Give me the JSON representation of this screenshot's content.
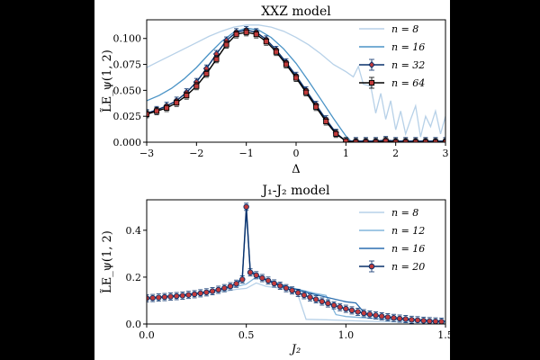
{
  "chart_data": [
    {
      "type": "line",
      "title": "XXZ model",
      "xlabel": "Δ",
      "ylabel": "L̃E_ψ(1, 2)",
      "xlim": [
        -3,
        3
      ],
      "ylim": [
        0,
        0.118
      ],
      "xticks": [
        "−3",
        "−2",
        "−1",
        "0",
        "1",
        "2",
        "3"
      ],
      "yticks": [
        "0.000",
        "0.025",
        "0.050",
        "0.075",
        "0.100"
      ],
      "legend_position": "top-right",
      "series": [
        {
          "name": "n = 8",
          "color": "#b7d1e8",
          "style": "line",
          "x": [
            -3,
            -2.75,
            -2.5,
            -2.25,
            -2,
            -1.75,
            -1.5,
            -1.25,
            -1,
            -0.75,
            -0.5,
            -0.25,
            0,
            0.25,
            0.5,
            0.75,
            1,
            1.15,
            1.25,
            1.35,
            1.5,
            1.6,
            1.7,
            1.8,
            1.9,
            2.0,
            2.1,
            2.2,
            2.3,
            2.4,
            2.5,
            2.6,
            2.7,
            2.8,
            2.9,
            3.0
          ],
          "y": [
            0.072,
            0.078,
            0.084,
            0.09,
            0.096,
            0.102,
            0.107,
            0.111,
            0.113,
            0.113,
            0.111,
            0.107,
            0.101,
            0.094,
            0.085,
            0.075,
            0.068,
            0.063,
            0.073,
            0.056,
            0.054,
            0.028,
            0.047,
            0.022,
            0.04,
            0.012,
            0.03,
            0.008,
            0.022,
            0.035,
            0.005,
            0.025,
            0.015,
            0.03,
            0.008,
            0.025
          ]
        },
        {
          "name": "n = 16",
          "color": "#4a93c6",
          "style": "line",
          "x": [
            -3,
            -2.75,
            -2.5,
            -2.25,
            -2,
            -1.75,
            -1.5,
            -1.25,
            -1,
            -0.75,
            -0.5,
            -0.25,
            0,
            0.25,
            0.5,
            0.75,
            1,
            1.1,
            1.5,
            2,
            2.5,
            3
          ],
          "y": [
            0.04,
            0.045,
            0.052,
            0.061,
            0.072,
            0.085,
            0.097,
            0.106,
            0.11,
            0.108,
            0.101,
            0.09,
            0.076,
            0.059,
            0.041,
            0.023,
            0.006,
            0.001,
            0.001,
            0.001,
            0.001,
            0.001
          ]
        },
        {
          "name": "n = 32",
          "color": "#08306b",
          "marker": "diamond",
          "marker_fill": "#c23b3b",
          "x": [
            -3,
            -2.8,
            -2.6,
            -2.4,
            -2.2,
            -2.0,
            -1.8,
            -1.6,
            -1.4,
            -1.2,
            -1.0,
            -0.8,
            -0.6,
            -0.4,
            -0.2,
            0,
            0.2,
            0.4,
            0.6,
            0.8,
            1.0,
            1.2,
            1.4,
            1.6,
            1.8,
            2.0,
            2.2,
            2.4,
            2.6,
            2.8,
            3.0
          ],
          "y": [
            0.028,
            0.031,
            0.035,
            0.04,
            0.048,
            0.058,
            0.071,
            0.085,
            0.098,
            0.106,
            0.108,
            0.106,
            0.099,
            0.089,
            0.077,
            0.064,
            0.05,
            0.036,
            0.022,
            0.009,
            0.001,
            0.001,
            0.001,
            0.001,
            0.002,
            0.001,
            0.001,
            0.001,
            0.001,
            0.001,
            0.001
          ]
        },
        {
          "name": "n = 64",
          "color": "#000000",
          "marker": "square",
          "marker_fill": "#c23b3b",
          "x": [
            -3,
            -2.8,
            -2.6,
            -2.4,
            -2.2,
            -2.0,
            -1.8,
            -1.6,
            -1.4,
            -1.2,
            -1.0,
            -0.8,
            -0.6,
            -0.4,
            -0.2,
            0,
            0.2,
            0.4,
            0.6,
            0.8,
            1.0,
            1.2,
            1.4,
            1.6,
            1.8,
            2.0,
            2.2,
            2.4,
            2.6,
            2.8,
            3.0
          ],
          "y": [
            0.027,
            0.03,
            0.033,
            0.038,
            0.045,
            0.054,
            0.066,
            0.08,
            0.094,
            0.104,
            0.106,
            0.104,
            0.097,
            0.087,
            0.075,
            0.062,
            0.048,
            0.034,
            0.02,
            0.008,
            0.001,
            0.0,
            0.0,
            0.0,
            0.001,
            0.0,
            0.0,
            0.0,
            0.0,
            0.0,
            0.0
          ]
        }
      ]
    },
    {
      "type": "line",
      "title": "J₁-J₂ model",
      "xlabel": "J₂",
      "ylabel": "L̃E_ψ(1, 2)",
      "xlim": [
        0,
        1.5
      ],
      "ylim": [
        0,
        0.53
      ],
      "xticks": [
        "0.0",
        "0.5",
        "1.0",
        "1.5"
      ],
      "yticks": [
        "0.0",
        "0.2",
        "0.4"
      ],
      "legend_position": "top-right",
      "series": [
        {
          "name": "n = 8",
          "color": "#b7d1e8",
          "style": "line",
          "x": [
            0,
            0.1,
            0.2,
            0.3,
            0.4,
            0.45,
            0.5,
            0.55,
            0.6,
            0.7,
            0.75,
            0.8,
            0.9,
            1.0,
            1.1,
            1.2,
            1.3,
            1.4,
            1.5
          ],
          "y": [
            0.11,
            0.118,
            0.125,
            0.132,
            0.14,
            0.148,
            0.152,
            0.175,
            0.16,
            0.15,
            0.148,
            0.02,
            0.018,
            0.015,
            0.012,
            0.01,
            0.008,
            0.006,
            0.005
          ]
        },
        {
          "name": "n = 12",
          "color": "#82b5db",
          "style": "line",
          "x": [
            0,
            0.1,
            0.2,
            0.3,
            0.4,
            0.45,
            0.5,
            0.55,
            0.6,
            0.7,
            0.8,
            0.85,
            0.9,
            0.95,
            1.0,
            1.1,
            1.2,
            1.3,
            1.4,
            1.5
          ],
          "y": [
            0.11,
            0.118,
            0.126,
            0.136,
            0.15,
            0.16,
            0.17,
            0.2,
            0.185,
            0.16,
            0.14,
            0.13,
            0.122,
            0.04,
            0.032,
            0.026,
            0.02,
            0.016,
            0.013,
            0.01
          ]
        },
        {
          "name": "n = 16",
          "color": "#2c6fb0",
          "style": "line",
          "x": [
            0,
            0.1,
            0.2,
            0.3,
            0.4,
            0.45,
            0.48,
            0.5,
            0.52,
            0.55,
            0.6,
            0.7,
            0.8,
            0.9,
            1.0,
            1.05,
            1.1,
            1.2,
            1.3,
            1.4,
            1.5
          ],
          "y": [
            0.11,
            0.117,
            0.126,
            0.138,
            0.155,
            0.17,
            0.2,
            0.48,
            0.23,
            0.21,
            0.19,
            0.16,
            0.135,
            0.115,
            0.095,
            0.09,
            0.04,
            0.03,
            0.022,
            0.016,
            0.012
          ]
        },
        {
          "name": "n = 20",
          "color": "#08306b",
          "marker": "circle",
          "marker_fill": "#c23b3b",
          "x": [
            0,
            0.03,
            0.06,
            0.09,
            0.12,
            0.15,
            0.18,
            0.21,
            0.24,
            0.27,
            0.3,
            0.33,
            0.36,
            0.39,
            0.42,
            0.45,
            0.48,
            0.5,
            0.52,
            0.55,
            0.58,
            0.61,
            0.64,
            0.67,
            0.7,
            0.73,
            0.76,
            0.79,
            0.82,
            0.85,
            0.88,
            0.91,
            0.94,
            0.97,
            1.0,
            1.03,
            1.06,
            1.09,
            1.12,
            1.15,
            1.18,
            1.21,
            1.24,
            1.27,
            1.3,
            1.33,
            1.36,
            1.39,
            1.42,
            1.45,
            1.48
          ],
          "y": [
            0.11,
            0.111,
            0.113,
            0.115,
            0.117,
            0.119,
            0.121,
            0.124,
            0.127,
            0.131,
            0.135,
            0.14,
            0.146,
            0.153,
            0.161,
            0.172,
            0.19,
            0.5,
            0.22,
            0.208,
            0.196,
            0.185,
            0.173,
            0.163,
            0.153,
            0.143,
            0.133,
            0.123,
            0.114,
            0.105,
            0.096,
            0.088,
            0.08,
            0.072,
            0.065,
            0.058,
            0.052,
            0.046,
            0.041,
            0.037,
            0.033,
            0.029,
            0.026,
            0.023,
            0.021,
            0.018,
            0.016,
            0.014,
            0.012,
            0.011,
            0.01
          ]
        }
      ]
    }
  ]
}
